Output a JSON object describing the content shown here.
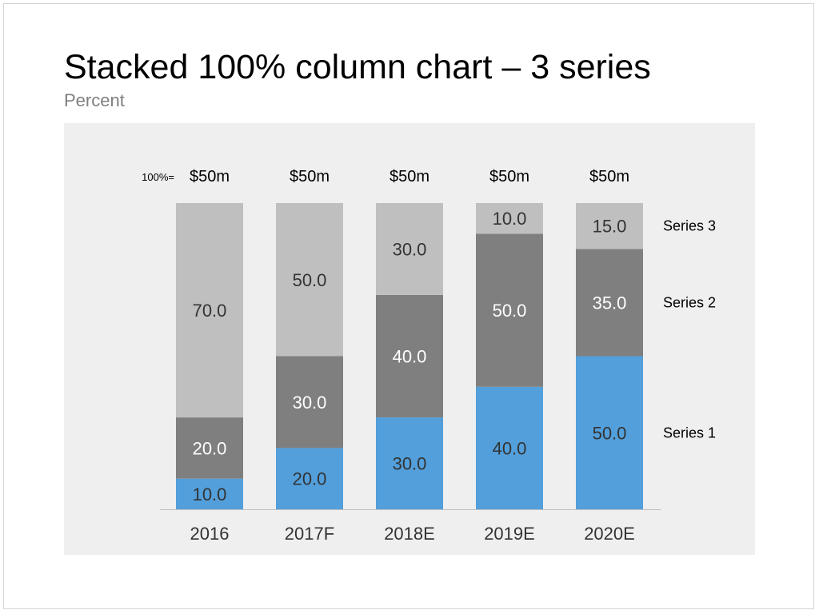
{
  "slide": {
    "title": "Stacked 100% column chart – 3 series",
    "subtitle": "Percent"
  },
  "chart_data": {
    "type": "bar",
    "stacked": "percent",
    "categories": [
      "2016",
      "2017F",
      "2018E",
      "2019E",
      "2020E"
    ],
    "totals_label": "100%=",
    "totals": [
      "$50m",
      "$50m",
      "$50m",
      "$50m",
      "$50m"
    ],
    "ylim": [
      0,
      100
    ],
    "grid": false,
    "legend_placement": "right, aligned with the last column's segments",
    "series": [
      {
        "name": "Series 1",
        "color": "#529fdb",
        "label_color": "#333333",
        "values": [
          10.0,
          20.0,
          30.0,
          40.0,
          50.0
        ]
      },
      {
        "name": "Series 2",
        "color": "#7f7f7f",
        "label_color": "#ffffff",
        "values": [
          20.0,
          30.0,
          40.0,
          50.0,
          35.0
        ]
      },
      {
        "name": "Series 3",
        "color": "#bfbfbf",
        "label_color": "#333333",
        "values": [
          70.0,
          50.0,
          30.0,
          10.0,
          15.0
        ]
      }
    ],
    "axis_color": "#bfbfbf",
    "category_label_color": "#333333"
  }
}
